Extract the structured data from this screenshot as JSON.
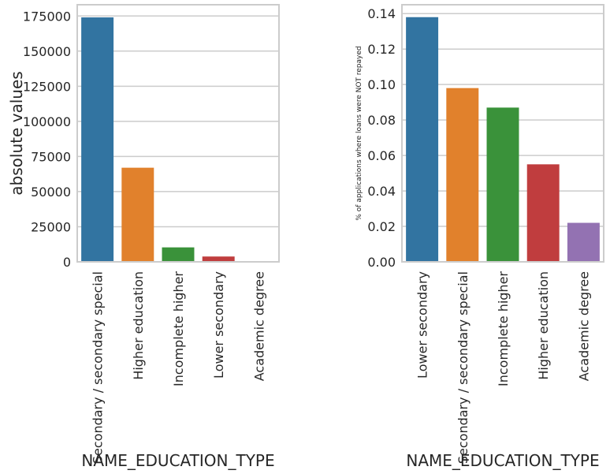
{
  "chart_data": [
    {
      "type": "bar",
      "title": "",
      "xlabel": "NAME_EDUCATION_TYPE",
      "ylabel": "absolute values",
      "categories": [
        "Secondary / secondary special",
        "Higher education",
        "Incomplete higher",
        "Lower secondary",
        "Academic degree"
      ],
      "values": [
        174000,
        67000,
        10300,
        3800,
        160
      ],
      "colors": [
        "#3274a1",
        "#e1812c",
        "#3a923a",
        "#c03d3e",
        "#9372b2"
      ],
      "ylim": [
        0,
        183000
      ],
      "yticks": [
        0,
        25000,
        50000,
        75000,
        100000,
        125000,
        150000,
        175000
      ],
      "grid": true
    },
    {
      "type": "bar",
      "title": "",
      "xlabel": "NAME_EDUCATION_TYPE",
      "ylabel": "% of applications where loans were NOT repayed",
      "categories": [
        "Lower secondary",
        "Secondary / secondary special",
        "Incomplete higher",
        "Higher education",
        "Academic degree"
      ],
      "values": [
        0.138,
        0.098,
        0.087,
        0.055,
        0.022
      ],
      "colors": [
        "#3274a1",
        "#e1812c",
        "#3a923a",
        "#c03d3e",
        "#9372b2"
      ],
      "ylim": [
        0,
        0.145
      ],
      "yticks": [
        0.0,
        0.02,
        0.04,
        0.06,
        0.08,
        0.1,
        0.12,
        0.14
      ],
      "ytick_labels": [
        "0.00",
        "0.02",
        "0.04",
        "0.06",
        "0.08",
        "0.10",
        "0.12",
        "0.14"
      ],
      "grid": true
    }
  ]
}
